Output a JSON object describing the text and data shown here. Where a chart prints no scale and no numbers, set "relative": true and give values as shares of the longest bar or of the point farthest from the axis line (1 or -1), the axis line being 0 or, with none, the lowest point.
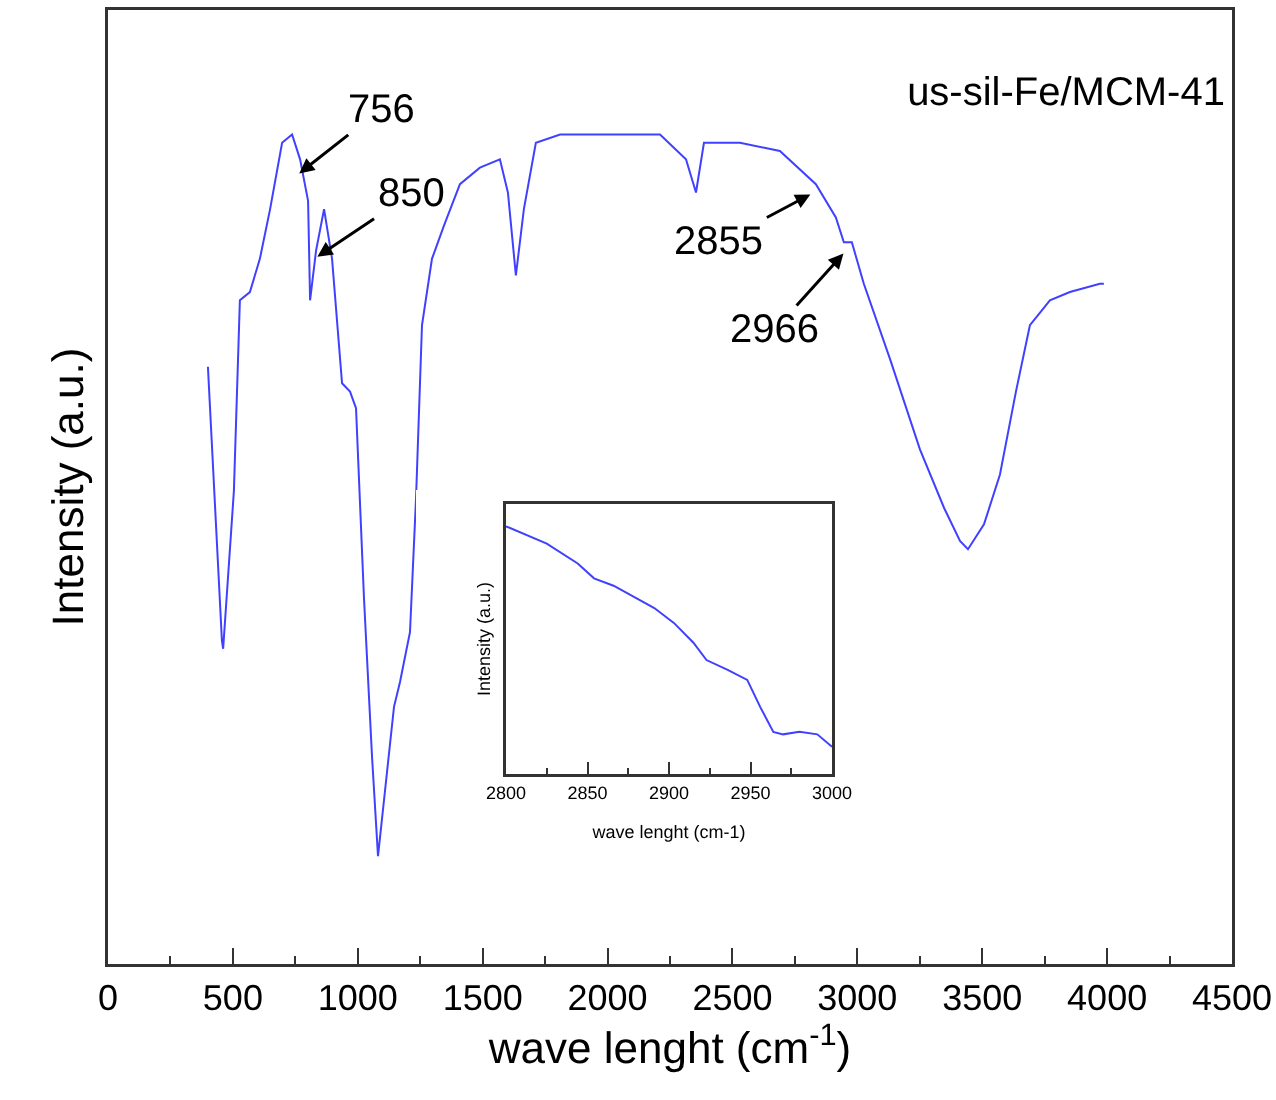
{
  "chart_data": [
    {
      "type": "line",
      "title": "us-sil-Fe/MCM-41",
      "xlabel": "wave lenght (cm$^{-1}$)",
      "ylabel": "Intensity (a.u.)",
      "relative": true,
      "xlim": [
        0,
        4500
      ],
      "xticks": [
        0,
        500,
        1000,
        1500,
        2000,
        2500,
        3000,
        3500,
        4000,
        4500
      ],
      "grid": false,
      "marker": "none",
      "line_style": "solid",
      "annotations": [
        {
          "text": "756",
          "x": 753,
          "y": 0.95
        },
        {
          "text": "850",
          "x": 825,
          "y": 0.85
        },
        {
          "text": "2855",
          "x": 2826,
          "y": 0.93
        },
        {
          "text": "2966",
          "x": 2955,
          "y": 0.86
        }
      ],
      "series": [
        {
          "color": "#4040ff",
          "x": [
            400,
            456,
            461,
            504,
            528,
            568,
            608,
            649,
            697,
            737,
            769,
            801,
            809,
            833,
            865,
            897,
            937,
            969,
            993,
            1025,
            1057,
            1081,
            1113,
            1145,
            1169,
            1209,
            1233,
            1257,
            1297,
            1345,
            1409,
            1489,
            1569,
            1601,
            1633,
            1665,
            1713,
            1810,
            1970,
            2210,
            2314,
            2354,
            2386,
            2530,
            2690,
            2834,
            2914,
            2946,
            2978,
            3026,
            3130,
            3251,
            3347,
            3411,
            3443,
            3507,
            3571,
            3635,
            3691,
            3771,
            3851,
            3971,
            3987
          ],
          "values": [
            0.72,
            0.39,
            0.38,
            0.57,
            0.8,
            0.81,
            0.85,
            0.91,
            0.99,
            1.0,
            0.97,
            0.92,
            0.8,
            0.86,
            0.91,
            0.85,
            0.7,
            0.69,
            0.67,
            0.44,
            0.25,
            0.13,
            0.22,
            0.31,
            0.34,
            0.4,
            0.56,
            0.77,
            0.85,
            0.89,
            0.94,
            0.96,
            0.97,
            0.93,
            0.83,
            0.91,
            0.99,
            1.0,
            1.0,
            1.0,
            0.97,
            0.93,
            0.99,
            0.99,
            0.98,
            0.94,
            0.9,
            0.87,
            0.87,
            0.82,
            0.73,
            0.62,
            0.55,
            0.51,
            0.5,
            0.53,
            0.59,
            0.69,
            0.77,
            0.8,
            0.81,
            0.82,
            0.82
          ]
        }
      ]
    },
    {
      "type": "line",
      "xlabel": "wave lenght (cm-1)",
      "ylabel": "Intensity (a.u.)",
      "relative": true,
      "xlim": [
        2800,
        3000
      ],
      "xticks": [
        2800,
        2850,
        2900,
        2950,
        3000
      ],
      "grid": false,
      "marker": "none",
      "line_style": "solid",
      "series": [
        {
          "color": "#4040ff",
          "x": [
            2800,
            2825,
            2844,
            2854,
            2866,
            2891,
            2903,
            2915,
            2923,
            2936,
            2948,
            2956,
            2964,
            2970,
            2980,
            2991,
            3000
          ],
          "values": [
            1.0,
            0.93,
            0.85,
            0.79,
            0.76,
            0.67,
            0.61,
            0.53,
            0.46,
            0.42,
            0.38,
            0.27,
            0.17,
            0.16,
            0.17,
            0.16,
            0.11
          ]
        }
      ]
    }
  ]
}
